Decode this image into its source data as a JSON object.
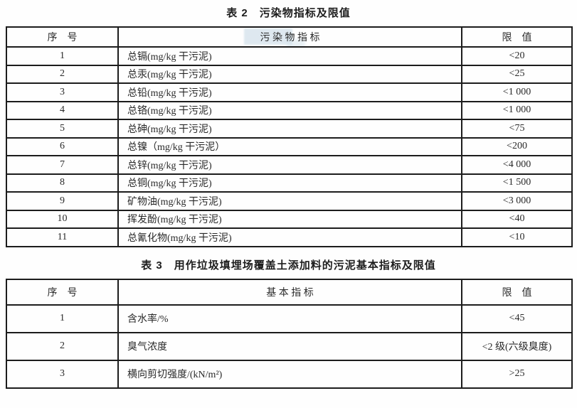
{
  "page": {
    "background": "#fefefe",
    "text_color": "#2a2a2a",
    "border_color": "#1c1c1c",
    "highlight_color": "#c9dbe7"
  },
  "table2": {
    "title": "表 2　污染物指标及限值",
    "headers": {
      "no": "序　号",
      "indicator": "污 染 物 指 标",
      "limit": "限　值"
    },
    "rows": [
      {
        "no": "1",
        "indicator": "总镉(mg/kg 干污泥)",
        "limit": "<20"
      },
      {
        "no": "2",
        "indicator": "总汞(mg/kg 干污泥)",
        "limit": "<25"
      },
      {
        "no": "3",
        "indicator": "总铅(mg/kg 干污泥)",
        "limit": "<1 000"
      },
      {
        "no": "4",
        "indicator": "总铬(mg/kg 干污泥)",
        "limit": "<1 000"
      },
      {
        "no": "5",
        "indicator": "总砷(mg/kg 干污泥)",
        "limit": "<75"
      },
      {
        "no": "6",
        "indicator": "总镍（mg/kg 干污泥）",
        "limit": "<200"
      },
      {
        "no": "7",
        "indicator": "总锌(mg/kg 干污泥)",
        "limit": "<4 000"
      },
      {
        "no": "8",
        "indicator": "总铜(mg/kg 干污泥)",
        "limit": "<1 500"
      },
      {
        "no": "9",
        "indicator": "矿物油(mg/kg 干污泥)",
        "limit": "<3 000"
      },
      {
        "no": "10",
        "indicator": "挥发酚(mg/kg 干污泥)",
        "limit": "<40"
      },
      {
        "no": "11",
        "indicator": "总氰化物(mg/kg 干污泥)",
        "limit": "<10"
      }
    ]
  },
  "table3": {
    "title": "表 3　用作垃圾填埋场覆盖土添加料的污泥基本指标及限值",
    "headers": {
      "no": "序　号",
      "indicator": "基 本 指 标",
      "limit": "限　值"
    },
    "rows": [
      {
        "no": "1",
        "indicator": "含水率/%",
        "limit": "<45"
      },
      {
        "no": "2",
        "indicator": "臭气浓度",
        "limit": "<2 级(六级臭度)"
      },
      {
        "no": "3",
        "indicator": "横向剪切强度/(kN/m²)",
        "limit": ">25"
      }
    ]
  }
}
